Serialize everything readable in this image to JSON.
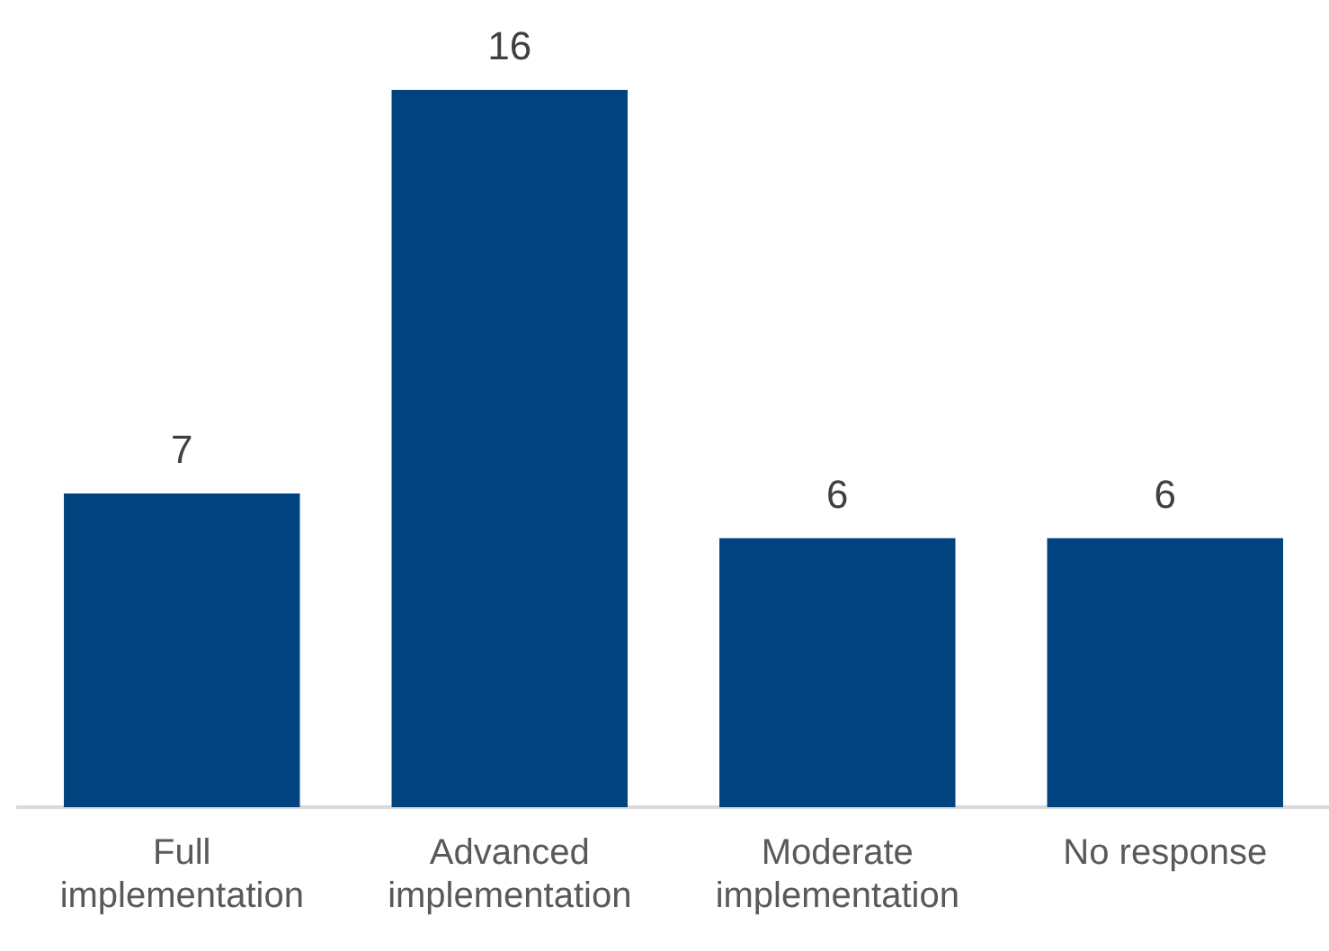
{
  "chart_data": {
    "type": "bar",
    "categories": [
      "Full implementation",
      "Advanced implementation",
      "Moderate implementation",
      "No response"
    ],
    "values": [
      7,
      16,
      6,
      6
    ],
    "color": "#00437f",
    "data_labels": true,
    "grid": false,
    "legend": false
  }
}
